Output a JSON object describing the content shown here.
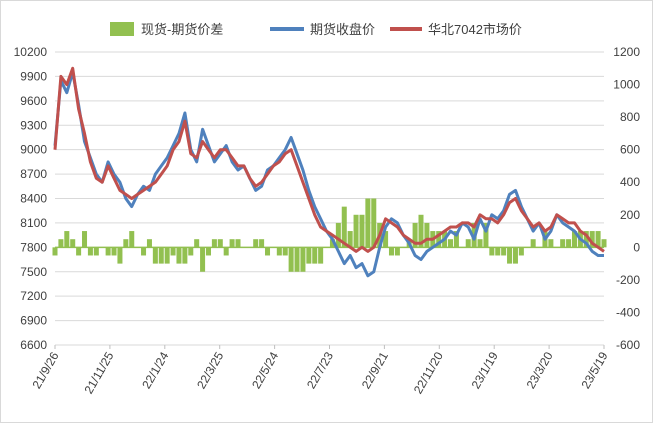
{
  "chart_data": {
    "type": "line",
    "title": "",
    "legend": {
      "position": "top",
      "entries": [
        {
          "name": "现货-期货价差",
          "kind": "area",
          "color": "#92c050"
        },
        {
          "name": "期货收盘价",
          "kind": "line",
          "color": "#4f81bd"
        },
        {
          "name": "华北7042市场价",
          "kind": "line",
          "color": "#c0504d"
        }
      ]
    },
    "x_tick_labels": [
      "21/9/26",
      "21/11/25",
      "22/1/24",
      "22/3/25",
      "22/5/24",
      "22/7/23",
      "22/9/21",
      "22/11/20",
      "23/1/19",
      "23/3/20",
      "23/5/19"
    ],
    "y_left": {
      "min": 6600,
      "max": 10200,
      "step": 300,
      "ticks": [
        "6600",
        "6900",
        "7200",
        "7500",
        "7800",
        "8100",
        "8400",
        "8700",
        "9000",
        "9300",
        "9600",
        "9900",
        "10200"
      ]
    },
    "y_right": {
      "min": -600,
      "max": 1200,
      "step": 200,
      "ticks": [
        "-600",
        "-400",
        "-200",
        "0",
        "200",
        "400",
        "600",
        "800",
        "1000",
        "1200"
      ]
    },
    "series": [
      {
        "name": "期货收盘价",
        "axis": "left",
        "color": "#4f81bd",
        "values": [
          9050,
          9850,
          9700,
          9950,
          9550,
          9100,
          8900,
          8700,
          8600,
          8850,
          8700,
          8600,
          8400,
          8300,
          8450,
          8550,
          8500,
          8700,
          8800,
          8900,
          9050,
          9200,
          9450,
          9000,
          8850,
          9250,
          9050,
          8850,
          8950,
          9050,
          8850,
          8750,
          8800,
          8650,
          8500,
          8550,
          8750,
          8800,
          8900,
          9000,
          9150,
          8950,
          8750,
          8500,
          8300,
          8150,
          8000,
          7900,
          7750,
          7600,
          7700,
          7550,
          7600,
          7450,
          7500,
          7800,
          8050,
          8150,
          8100,
          7950,
          7850,
          7700,
          7650,
          7750,
          7800,
          7850,
          7900,
          8000,
          7950,
          8100,
          8050,
          7900,
          8150,
          8000,
          8200,
          8150,
          8250,
          8450,
          8500,
          8300,
          8150,
          8000,
          8100,
          7900,
          8000,
          8200,
          8100,
          8050,
          8000,
          7900,
          7850,
          7750,
          7700,
          7700
        ]
      },
      {
        "name": "华北7042市场价",
        "axis": "left",
        "color": "#c0504d",
        "values": [
          9000,
          9900,
          9800,
          10000,
          9500,
          9200,
          8850,
          8650,
          8600,
          8800,
          8650,
          8500,
          8450,
          8400,
          8450,
          8500,
          8550,
          8600,
          8700,
          8800,
          9000,
          9100,
          9350,
          8950,
          8900,
          9100,
          9000,
          8900,
          9000,
          9000,
          8900,
          8800,
          8800,
          8650,
          8550,
          8600,
          8700,
          8800,
          8850,
          8950,
          9000,
          8800,
          8600,
          8400,
          8200,
          8050,
          8000,
          7950,
          7900,
          7850,
          7800,
          7750,
          7800,
          7750,
          7800,
          7950,
          8150,
          8100,
          8050,
          7950,
          7900,
          7850,
          7850,
          7900,
          7900,
          7950,
          8000,
          8050,
          8050,
          8100,
          8100,
          8050,
          8200,
          8150,
          8150,
          8100,
          8200,
          8350,
          8400,
          8250,
          8150,
          8050,
          8100,
          8000,
          8050,
          8200,
          8150,
          8100,
          8100,
          8000,
          7950,
          7850,
          7800,
          7750
        ]
      },
      {
        "name": "现货-期货价差",
        "axis": "right",
        "color": "#92c050",
        "values": [
          -50,
          50,
          100,
          50,
          -50,
          100,
          -50,
          -50,
          0,
          -50,
          -50,
          -100,
          50,
          100,
          0,
          -50,
          50,
          -100,
          -100,
          -100,
          -50,
          -100,
          -100,
          -50,
          50,
          -150,
          -50,
          50,
          50,
          -50,
          50,
          50,
          0,
          0,
          50,
          50,
          -50,
          0,
          -50,
          -50,
          -150,
          -150,
          -150,
          -100,
          -100,
          -100,
          0,
          50,
          150,
          250,
          100,
          200,
          200,
          300,
          300,
          150,
          100,
          -50,
          -50,
          0,
          50,
          150,
          200,
          150,
          100,
          100,
          100,
          50,
          100,
          0,
          50,
          150,
          50,
          150,
          -50,
          -50,
          -50,
          -100,
          -100,
          -50,
          0,
          50,
          0,
          100,
          50,
          0,
          50,
          50,
          100,
          100,
          100,
          100,
          100,
          50
        ]
      }
    ]
  }
}
